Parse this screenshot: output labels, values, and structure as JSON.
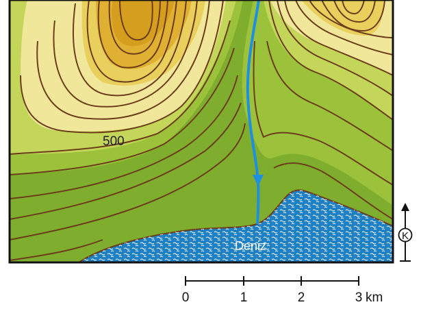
{
  "map": {
    "contour_label": "500",
    "sea_label": "Deniz",
    "north_label": "K"
  },
  "scale_bar": {
    "ticks": [
      "0",
      "1",
      "2",
      "3"
    ],
    "unit": "km"
  },
  "colors": {
    "sea": "#1d7fc4",
    "river": "#1f8fe0",
    "contour_line": "#6b3d1a",
    "low_green": "#7fae2e",
    "mid_green": "#9bc23a",
    "light_green": "#c4d65a",
    "pale_yellow": "#f1e79a",
    "yellow": "#e9cf5c",
    "gold": "#e0b032",
    "peak": "#d69e1e"
  }
}
